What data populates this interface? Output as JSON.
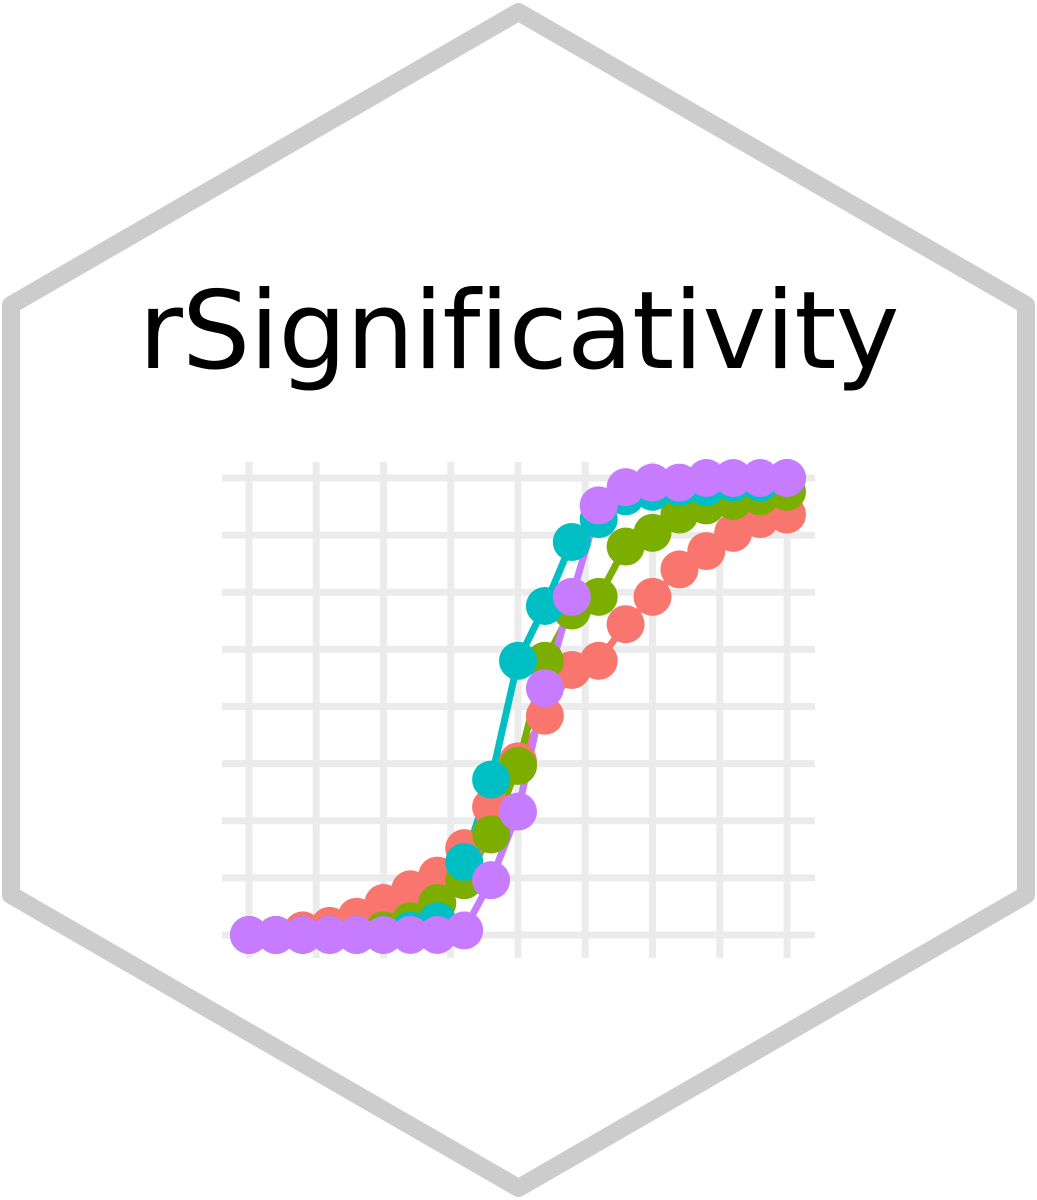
{
  "logo": {
    "title": "rSignificativity",
    "border_color": "#cccccc",
    "background_color": "#ffffff",
    "grid_color": "#ebebeb"
  },
  "chart_data": {
    "type": "line",
    "xlim": [
      0,
      20
    ],
    "ylim": [
      0,
      1
    ],
    "grid": "on",
    "x": [
      0,
      1,
      2,
      3,
      4,
      5,
      6,
      7,
      8,
      9,
      10,
      11,
      12,
      13,
      14,
      15,
      16,
      17,
      18,
      19,
      20
    ],
    "series": [
      {
        "color": "#f8766d",
        "values": [
          0.0,
          0.0,
          0.01,
          0.02,
          0.04,
          0.07,
          0.1,
          0.13,
          0.19,
          0.28,
          0.38,
          0.48,
          0.58,
          0.6,
          0.68,
          0.74,
          0.8,
          0.84,
          0.88,
          0.91,
          0.92
        ]
      },
      {
        "color": "#7cae00",
        "values": [
          0.0,
          0.0,
          0.0,
          0.0,
          0.0,
          0.01,
          0.03,
          0.07,
          0.12,
          0.22,
          0.37,
          0.6,
          0.71,
          0.74,
          0.85,
          0.88,
          0.92,
          0.94,
          0.95,
          0.96,
          0.97
        ]
      },
      {
        "color": "#00bfc4",
        "values": [
          0.0,
          0.0,
          0.0,
          0.0,
          0.0,
          0.0,
          0.01,
          0.03,
          0.16,
          0.34,
          0.6,
          0.72,
          0.86,
          0.91,
          0.96,
          0.97,
          0.98,
          0.98,
          0.99,
          0.99,
          1.0
        ]
      },
      {
        "color": "#c77cff",
        "values": [
          0.0,
          0.0,
          0.0,
          0.0,
          0.0,
          0.0,
          0.0,
          0.0,
          0.01,
          0.12,
          0.27,
          0.54,
          0.74,
          0.94,
          0.98,
          0.99,
          0.99,
          1.0,
          1.0,
          1.0,
          1.0
        ]
      }
    ]
  }
}
